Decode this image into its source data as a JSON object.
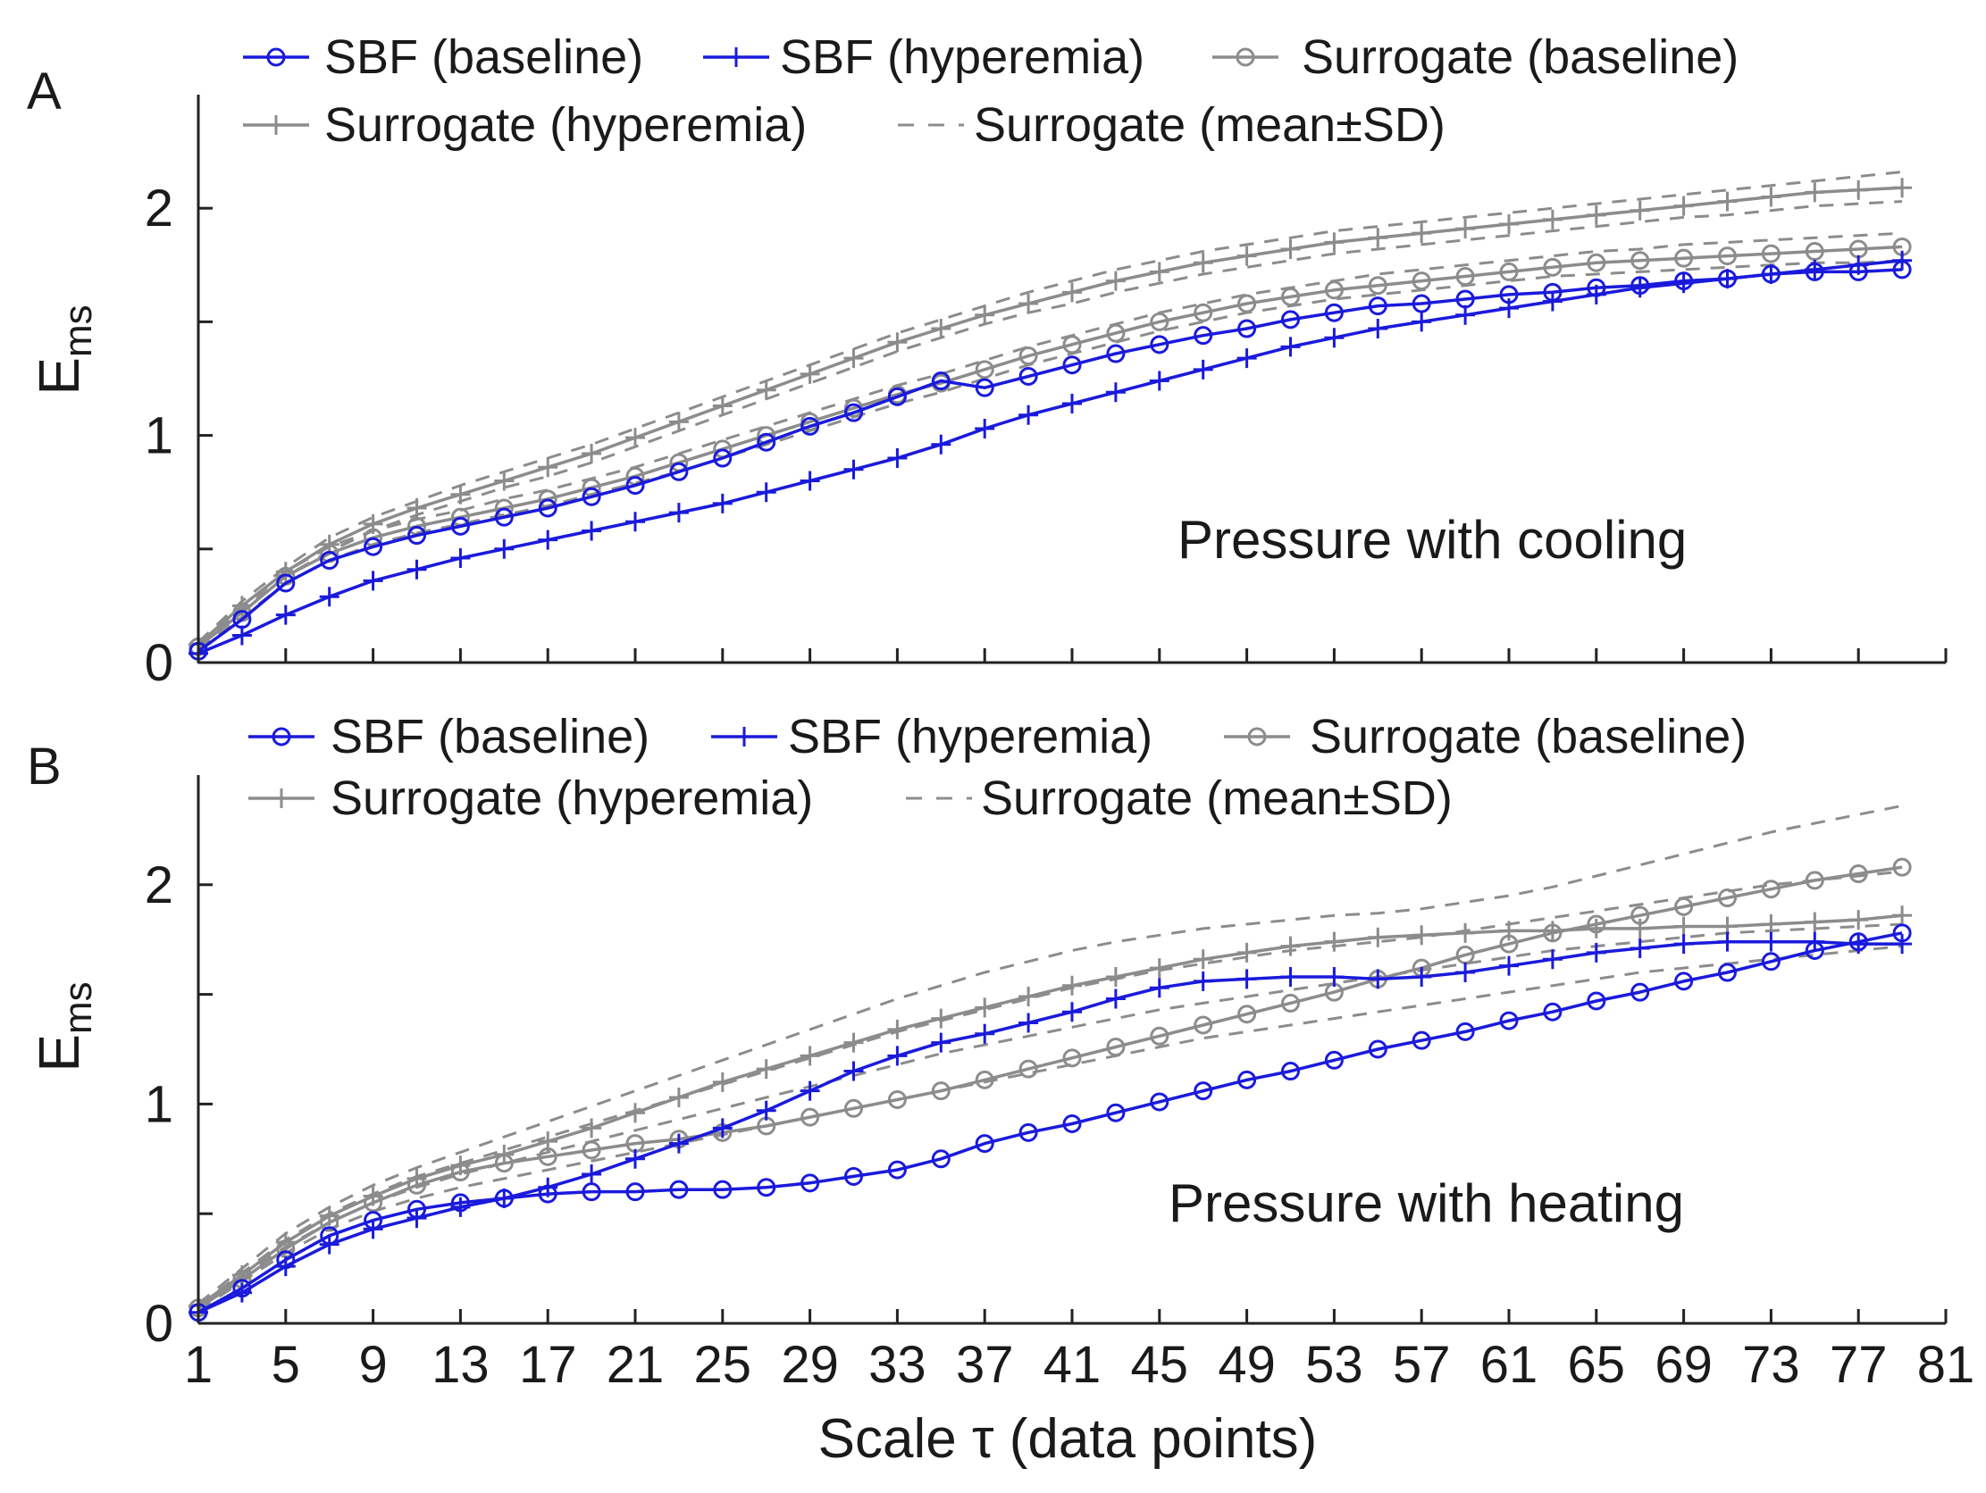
{
  "figure": {
    "xlabel": "Scale τ (data points)",
    "ylabel_main": "E",
    "ylabel_sub": "ms"
  },
  "colors": {
    "sbf": "#1a1adc",
    "surrogate": "#8c8c8c",
    "axis": "#222222",
    "text": "#1a1a1a"
  },
  "chart_data": [
    {
      "type": "line",
      "panel_label": "A",
      "annotation": "Pressure with cooling",
      "xlim": [
        1,
        81
      ],
      "ylim": [
        0,
        2.5
      ],
      "x_ticks": [
        1,
        5,
        9,
        13,
        17,
        21,
        25,
        29,
        33,
        37,
        41,
        45,
        49,
        53,
        57,
        61,
        65,
        69,
        73,
        77,
        81
      ],
      "y_ticks": [
        0,
        0.5,
        1,
        1.5,
        2
      ],
      "y_tick_labels": [
        "0",
        "",
        "1",
        "",
        "2"
      ],
      "show_x_tick_labels": false,
      "legend": [
        "SBF (baseline)",
        "SBF (hyperemia)",
        "Surrogate (baseline)",
        "Surrogate (hyperemia)",
        "Surrogate (mean±SD)"
      ],
      "x": [
        1,
        3,
        5,
        7,
        9,
        11,
        13,
        15,
        17,
        19,
        21,
        23,
        25,
        27,
        29,
        31,
        33,
        35,
        37,
        39,
        41,
        43,
        45,
        47,
        49,
        51,
        53,
        55,
        57,
        59,
        61,
        63,
        65,
        67,
        69,
        71,
        73,
        75,
        77,
        79
      ],
      "series": [
        {
          "name": "SBF (baseline)",
          "style": "sbf-circle",
          "values": [
            0.05,
            0.19,
            0.35,
            0.45,
            0.51,
            0.56,
            0.6,
            0.64,
            0.68,
            0.73,
            0.78,
            0.84,
            0.9,
            0.97,
            1.04,
            1.1,
            1.17,
            1.24,
            1.21,
            1.26,
            1.31,
            1.36,
            1.4,
            1.44,
            1.47,
            1.51,
            1.54,
            1.57,
            1.58,
            1.6,
            1.62,
            1.63,
            1.65,
            1.66,
            1.68,
            1.69,
            1.71,
            1.72,
            1.72,
            1.73
          ]
        },
        {
          "name": "SBF (hyperemia)",
          "style": "sbf-plus",
          "values": [
            0.04,
            0.12,
            0.21,
            0.29,
            0.36,
            0.41,
            0.46,
            0.5,
            0.54,
            0.58,
            0.62,
            0.66,
            0.7,
            0.75,
            0.8,
            0.85,
            0.9,
            0.96,
            1.03,
            1.09,
            1.14,
            1.19,
            1.24,
            1.29,
            1.34,
            1.39,
            1.43,
            1.47,
            1.5,
            1.53,
            1.56,
            1.59,
            1.62,
            1.65,
            1.67,
            1.69,
            1.71,
            1.73,
            1.75,
            1.77
          ]
        },
        {
          "name": "Surrogate (baseline)",
          "style": "sur-circle",
          "values": [
            0.07,
            0.22,
            0.38,
            0.48,
            0.55,
            0.6,
            0.64,
            0.68,
            0.72,
            0.77,
            0.82,
            0.88,
            0.94,
            1.0,
            1.06,
            1.12,
            1.18,
            1.23,
            1.29,
            1.35,
            1.4,
            1.45,
            1.5,
            1.54,
            1.58,
            1.61,
            1.64,
            1.66,
            1.68,
            1.7,
            1.72,
            1.74,
            1.76,
            1.77,
            1.78,
            1.79,
            1.8,
            1.81,
            1.82,
            1.83
          ]
        },
        {
          "name": "Surrogate (hyperemia)",
          "style": "sur-plus",
          "values": [
            0.08,
            0.25,
            0.4,
            0.52,
            0.61,
            0.68,
            0.74,
            0.8,
            0.86,
            0.92,
            0.99,
            1.06,
            1.13,
            1.2,
            1.27,
            1.34,
            1.41,
            1.47,
            1.53,
            1.58,
            1.63,
            1.68,
            1.72,
            1.76,
            1.79,
            1.82,
            1.85,
            1.87,
            1.89,
            1.91,
            1.93,
            1.95,
            1.97,
            1.99,
            2.01,
            2.03,
            2.05,
            2.07,
            2.08,
            2.09
          ]
        },
        {
          "name": "Surrogate (mean±SD) baseline upper",
          "style": "sur-dash",
          "values": [
            0.08,
            0.24,
            0.4,
            0.51,
            0.58,
            0.63,
            0.67,
            0.72,
            0.76,
            0.81,
            0.86,
            0.92,
            0.98,
            1.04,
            1.1,
            1.16,
            1.22,
            1.27,
            1.33,
            1.39,
            1.44,
            1.49,
            1.54,
            1.58,
            1.62,
            1.65,
            1.68,
            1.71,
            1.73,
            1.75,
            1.77,
            1.79,
            1.81,
            1.82,
            1.84,
            1.85,
            1.86,
            1.87,
            1.88,
            1.89
          ]
        },
        {
          "name": "Surrogate (mean±SD) baseline lower",
          "style": "sur-dash",
          "values": [
            0.06,
            0.2,
            0.35,
            0.45,
            0.52,
            0.57,
            0.61,
            0.65,
            0.69,
            0.74,
            0.79,
            0.84,
            0.9,
            0.96,
            1.02,
            1.08,
            1.14,
            1.19,
            1.25,
            1.31,
            1.36,
            1.41,
            1.46,
            1.5,
            1.54,
            1.57,
            1.6,
            1.62,
            1.64,
            1.66,
            1.68,
            1.7,
            1.71,
            1.72,
            1.73,
            1.74,
            1.75,
            1.76,
            1.76,
            1.77
          ]
        },
        {
          "name": "Surrogate (mean±SD) hyperemia upper",
          "style": "sur-dash",
          "values": [
            0.09,
            0.27,
            0.42,
            0.55,
            0.64,
            0.71,
            0.78,
            0.84,
            0.9,
            0.96,
            1.03,
            1.1,
            1.17,
            1.24,
            1.31,
            1.38,
            1.45,
            1.51,
            1.57,
            1.63,
            1.68,
            1.73,
            1.77,
            1.81,
            1.84,
            1.87,
            1.9,
            1.92,
            1.94,
            1.96,
            1.98,
            2.0,
            2.02,
            2.04,
            2.06,
            2.08,
            2.1,
            2.12,
            2.14,
            2.16
          ]
        },
        {
          "name": "Surrogate (mean±SD) hyperemia lower",
          "style": "sur-dash",
          "values": [
            0.07,
            0.23,
            0.38,
            0.49,
            0.58,
            0.65,
            0.71,
            0.77,
            0.82,
            0.88,
            0.95,
            1.02,
            1.09,
            1.16,
            1.23,
            1.3,
            1.37,
            1.43,
            1.49,
            1.54,
            1.58,
            1.63,
            1.67,
            1.71,
            1.74,
            1.77,
            1.8,
            1.82,
            1.84,
            1.86,
            1.88,
            1.9,
            1.92,
            1.94,
            1.96,
            1.97,
            1.99,
            2.01,
            2.02,
            2.03
          ]
        }
      ]
    },
    {
      "type": "line",
      "panel_label": "B",
      "annotation": "Pressure with heating",
      "xlim": [
        1,
        81
      ],
      "ylim": [
        0,
        2.5
      ],
      "x_ticks": [
        1,
        5,
        9,
        13,
        17,
        21,
        25,
        29,
        33,
        37,
        41,
        45,
        49,
        53,
        57,
        61,
        65,
        69,
        73,
        77,
        81
      ],
      "x_tick_labels": [
        "1",
        "5",
        "9",
        "13",
        "17",
        "21",
        "25",
        "29",
        "33",
        "37",
        "41",
        "45",
        "49",
        "53",
        "57",
        "61",
        "65",
        "69",
        "73",
        "77",
        "81"
      ],
      "y_ticks": [
        0,
        0.5,
        1,
        1.5,
        2
      ],
      "y_tick_labels": [
        "0",
        "",
        "1",
        "",
        "2"
      ],
      "show_x_tick_labels": true,
      "legend": [
        "SBF (baseline)",
        "SBF (hyperemia)",
        "Surrogate (baseline)",
        "Surrogate (hyperemia)",
        "Surrogate (mean±SD)"
      ],
      "x": [
        1,
        3,
        5,
        7,
        9,
        11,
        13,
        15,
        17,
        19,
        21,
        23,
        25,
        27,
        29,
        31,
        33,
        35,
        37,
        39,
        41,
        43,
        45,
        47,
        49,
        51,
        53,
        55,
        57,
        59,
        61,
        63,
        65,
        67,
        69,
        71,
        73,
        75,
        77,
        79
      ],
      "series": [
        {
          "name": "SBF (baseline)",
          "style": "sbf-circle",
          "values": [
            0.05,
            0.16,
            0.29,
            0.4,
            0.47,
            0.52,
            0.55,
            0.57,
            0.59,
            0.6,
            0.6,
            0.61,
            0.61,
            0.62,
            0.64,
            0.67,
            0.7,
            0.75,
            0.82,
            0.87,
            0.91,
            0.96,
            1.01,
            1.06,
            1.11,
            1.15,
            1.2,
            1.25,
            1.29,
            1.33,
            1.38,
            1.42,
            1.47,
            1.51,
            1.56,
            1.6,
            1.65,
            1.7,
            1.74,
            1.78
          ]
        },
        {
          "name": "SBF (hyperemia)",
          "style": "sbf-plus",
          "values": [
            0.05,
            0.14,
            0.26,
            0.36,
            0.43,
            0.48,
            0.53,
            0.57,
            0.62,
            0.68,
            0.75,
            0.82,
            0.89,
            0.97,
            1.06,
            1.15,
            1.22,
            1.28,
            1.32,
            1.37,
            1.42,
            1.48,
            1.53,
            1.56,
            1.57,
            1.58,
            1.58,
            1.57,
            1.58,
            1.6,
            1.63,
            1.66,
            1.69,
            1.71,
            1.73,
            1.74,
            1.74,
            1.74,
            1.73,
            1.73
          ]
        },
        {
          "name": "Surrogate (baseline)",
          "style": "sur-circle",
          "values": [
            0.07,
            0.2,
            0.34,
            0.46,
            0.55,
            0.63,
            0.69,
            0.73,
            0.76,
            0.79,
            0.82,
            0.84,
            0.87,
            0.9,
            0.94,
            0.98,
            1.02,
            1.06,
            1.11,
            1.16,
            1.21,
            1.26,
            1.31,
            1.36,
            1.41,
            1.46,
            1.51,
            1.57,
            1.62,
            1.68,
            1.73,
            1.78,
            1.82,
            1.86,
            1.9,
            1.94,
            1.98,
            2.02,
            2.05,
            2.08
          ]
        },
        {
          "name": "Surrogate (hyperemia)",
          "style": "sur-plus",
          "values": [
            0.08,
            0.22,
            0.37,
            0.49,
            0.58,
            0.66,
            0.72,
            0.77,
            0.83,
            0.89,
            0.96,
            1.03,
            1.1,
            1.16,
            1.22,
            1.28,
            1.34,
            1.39,
            1.44,
            1.49,
            1.54,
            1.58,
            1.62,
            1.66,
            1.69,
            1.72,
            1.74,
            1.76,
            1.77,
            1.78,
            1.79,
            1.79,
            1.8,
            1.8,
            1.81,
            1.81,
            1.82,
            1.83,
            1.84,
            1.86
          ]
        },
        {
          "name": "Surrogate (mean±SD) upper",
          "style": "sur-dash",
          "values": [
            0.09,
            0.25,
            0.41,
            0.53,
            0.63,
            0.71,
            0.78,
            0.85,
            0.92,
            0.99,
            1.06,
            1.13,
            1.2,
            1.27,
            1.34,
            1.41,
            1.48,
            1.54,
            1.6,
            1.65,
            1.7,
            1.74,
            1.77,
            1.8,
            1.82,
            1.84,
            1.86,
            1.87,
            1.89,
            1.92,
            1.95,
            1.99,
            2.04,
            2.09,
            2.14,
            2.19,
            2.24,
            2.28,
            2.32,
            2.36
          ]
        },
        {
          "name": "Surrogate (mean±SD) mid-upper",
          "style": "sur-dash",
          "values": [
            0.08,
            0.23,
            0.38,
            0.5,
            0.59,
            0.67,
            0.73,
            0.79,
            0.85,
            0.91,
            0.97,
            1.03,
            1.09,
            1.15,
            1.21,
            1.27,
            1.33,
            1.38,
            1.43,
            1.48,
            1.53,
            1.57,
            1.61,
            1.64,
            1.67,
            1.7,
            1.72,
            1.74,
            1.76,
            1.79,
            1.82,
            1.85,
            1.88,
            1.91,
            1.94,
            1.97,
            2.0,
            2.02,
            2.04,
            2.06
          ]
        },
        {
          "name": "Surrogate (mean±SD) mid-lower",
          "style": "sur-dash",
          "values": [
            0.07,
            0.21,
            0.35,
            0.46,
            0.55,
            0.62,
            0.68,
            0.73,
            0.78,
            0.83,
            0.88,
            0.93,
            0.98,
            1.03,
            1.08,
            1.13,
            1.18,
            1.23,
            1.27,
            1.31,
            1.35,
            1.39,
            1.43,
            1.46,
            1.49,
            1.52,
            1.55,
            1.58,
            1.61,
            1.64,
            1.67,
            1.7,
            1.72,
            1.74,
            1.76,
            1.78,
            1.79,
            1.8,
            1.81,
            1.82
          ]
        },
        {
          "name": "Surrogate (mean±SD) lower",
          "style": "sur-dash",
          "values": [
            0.06,
            0.19,
            0.32,
            0.43,
            0.51,
            0.57,
            0.62,
            0.66,
            0.7,
            0.74,
            0.78,
            0.82,
            0.86,
            0.9,
            0.94,
            0.98,
            1.02,
            1.06,
            1.1,
            1.14,
            1.18,
            1.22,
            1.26,
            1.3,
            1.33,
            1.36,
            1.39,
            1.42,
            1.45,
            1.48,
            1.51,
            1.54,
            1.57,
            1.6,
            1.62,
            1.64,
            1.66,
            1.68,
            1.7,
            1.72
          ]
        }
      ]
    }
  ]
}
